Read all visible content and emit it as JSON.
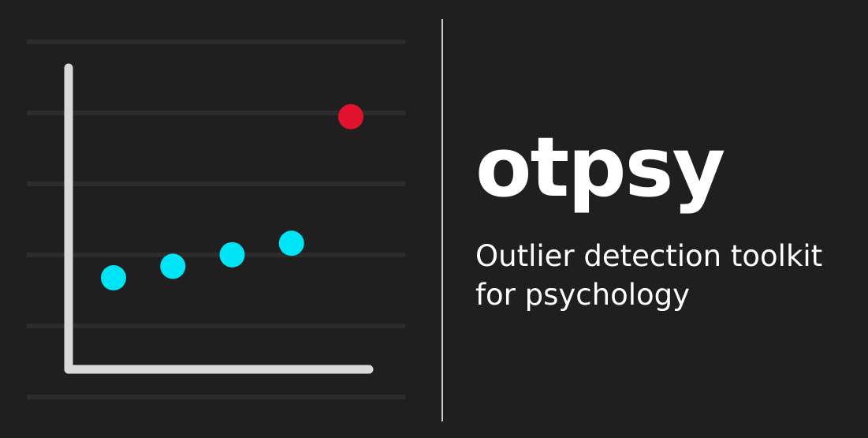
{
  "brand": {
    "name": "otpsy",
    "tagline_line1": "Outlier detection toolkit",
    "tagline_line2": "for psychology"
  },
  "colors": {
    "background": "#1f1f1f",
    "gridline": "#2c2c2c",
    "axis": "#d9d9d9",
    "inlier": "#00e5f5",
    "outlier": "#e1122d",
    "text": "#ffffff"
  },
  "illustration": {
    "kind": "scatter-icon",
    "inliers": [
      {
        "x": 1,
        "y": 1.0
      },
      {
        "x": 2,
        "y": 1.3
      },
      {
        "x": 3,
        "y": 1.6
      },
      {
        "x": 4,
        "y": 1.9
      }
    ],
    "outlier": {
      "x": 5,
      "y": 5.2
    }
  }
}
